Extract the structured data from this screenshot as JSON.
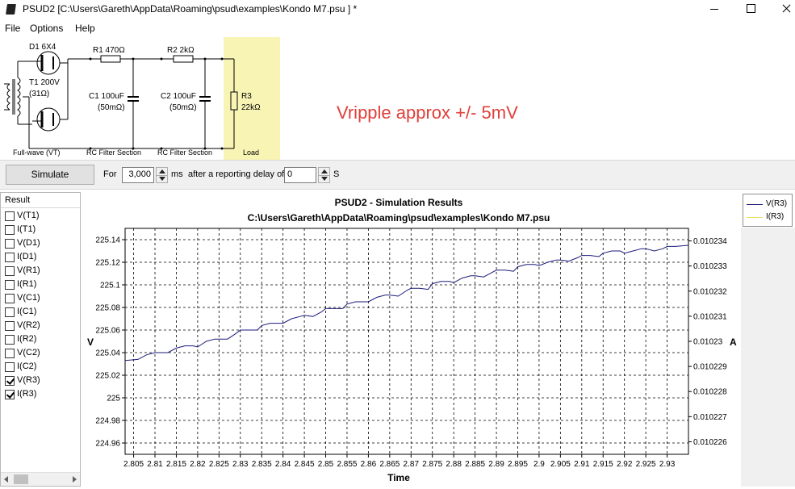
{
  "window": {
    "app": "PSUD2",
    "title": "PSUD2  [C:\\Users\\Gareth\\AppData\\Roaming\\psud\\examples\\Kondo M7.psu ] *"
  },
  "menu": [
    "File",
    "Options",
    "Help"
  ],
  "circuit": {
    "d1": "D1 6X4",
    "t1_line1": "T1 200V",
    "t1_line2": "(31Ω)",
    "r1": "R1 470Ω",
    "r2": "R2 2kΩ",
    "c1_line1": "C1 100uF",
    "c1_line2": "(50mΩ)",
    "c2_line1": "C2 100uF",
    "c2_line2": "(50mΩ)",
    "r3_line1": "R3",
    "r3_line2": "22kΩ",
    "section_fullwave": "Full-wave (VT)",
    "section_rc1": "RC Filter Section",
    "section_rc2": "RC Filter Section",
    "section_load": "Load",
    "annotation": "Vripple approx +/- 5mV",
    "load_color": "#f8f4b4",
    "annotation_color": "#e0403a"
  },
  "controls": {
    "simulate_label": "Simulate",
    "for_label": "For",
    "duration_value": "3,000",
    "ms_label": "ms",
    "delay_label": "after a reporting delay of",
    "delay_value": "0",
    "s_label": "S"
  },
  "results": {
    "header": "Result",
    "items": [
      {
        "label": "V(T1)",
        "checked": false
      },
      {
        "label": "I(T1)",
        "checked": false
      },
      {
        "label": "V(D1)",
        "checked": false
      },
      {
        "label": "I(D1)",
        "checked": false
      },
      {
        "label": "V(R1)",
        "checked": false
      },
      {
        "label": "I(R1)",
        "checked": false
      },
      {
        "label": "V(C1)",
        "checked": false
      },
      {
        "label": "I(C1)",
        "checked": false
      },
      {
        "label": "V(R2)",
        "checked": false
      },
      {
        "label": "I(R2)",
        "checked": false
      },
      {
        "label": "V(C2)",
        "checked": false
      },
      {
        "label": "I(C2)",
        "checked": false
      },
      {
        "label": "V(R3)",
        "checked": true
      },
      {
        "label": "I(R3)",
        "checked": true
      }
    ]
  },
  "legend": [
    {
      "label": "V(R3)",
      "color": "#1a1a7a"
    },
    {
      "label": "I(R3)",
      "color": "#e8e060"
    }
  ],
  "chart_data": {
    "type": "line",
    "title": "PSUD2 - Simulation Results",
    "subtitle": "C:\\Users\\Gareth\\AppData\\Roaming\\psud\\examples\\Kondo M7.psu",
    "xlabel": "Time",
    "ylabel": "V",
    "y2label": "A",
    "xlim": [
      2.803,
      2.935
    ],
    "ylim": [
      224.95,
      225.15
    ],
    "y2lim": [
      0.0102255,
      0.0102345
    ],
    "x_ticks": [
      "2.805",
      "2.81",
      "2.815",
      "2.82",
      "2.825",
      "2.83",
      "2.835",
      "2.84",
      "2.845",
      "2.85",
      "2.855",
      "2.86",
      "2.865",
      "2.87",
      "2.875",
      "2.88",
      "2.885",
      "2.89",
      "2.895",
      "2.9",
      "2.905",
      "2.91",
      "2.915",
      "2.92",
      "2.925",
      "2.93"
    ],
    "y_ticks": [
      "224.96",
      "224.98",
      "225",
      "225.02",
      "225.04",
      "225.06",
      "225.08",
      "225.1",
      "225.12",
      "225.14"
    ],
    "y2_ticks": [
      "0.010226",
      "0.010227",
      "0.010228",
      "0.010229",
      "0.01023",
      "0.010231",
      "0.010232",
      "0.010233",
      "0.010234"
    ],
    "grid": true,
    "series": [
      {
        "name": "V(R3)",
        "color": "#1a1a7a",
        "x": [
          2.803,
          2.806,
          2.808,
          2.81,
          2.812,
          2.813,
          2.815,
          2.817,
          2.819,
          2.82,
          2.822,
          2.824,
          2.825,
          2.827,
          2.829,
          2.83,
          2.832,
          2.834,
          2.835,
          2.837,
          2.839,
          2.84,
          2.842,
          2.844,
          2.845,
          2.847,
          2.849,
          2.85,
          2.852,
          2.854,
          2.855,
          2.857,
          2.859,
          2.86,
          2.862,
          2.864,
          2.865,
          2.867,
          2.869,
          2.87,
          2.872,
          2.874,
          2.875,
          2.877,
          2.879,
          2.88,
          2.882,
          2.884,
          2.885,
          2.887,
          2.889,
          2.89,
          2.892,
          2.894,
          2.895,
          2.897,
          2.899,
          2.9,
          2.902,
          2.904,
          2.905,
          2.907,
          2.909,
          2.91,
          2.912,
          2.914,
          2.915,
          2.917,
          2.919,
          2.92,
          2.922,
          2.924,
          2.925,
          2.927,
          2.929,
          2.93,
          2.932,
          2.935
        ],
        "values": [
          225.033,
          225.034,
          225.038,
          225.04,
          225.04,
          225.04,
          225.044,
          225.046,
          225.046,
          225.045,
          225.05,
          225.052,
          225.052,
          225.052,
          225.057,
          225.06,
          225.06,
          225.06,
          225.064,
          225.066,
          225.066,
          225.066,
          225.07,
          225.072,
          225.073,
          225.072,
          225.076,
          225.079,
          225.079,
          225.079,
          225.083,
          225.085,
          225.085,
          225.085,
          225.089,
          225.091,
          225.091,
          225.09,
          225.095,
          225.097,
          225.097,
          225.096,
          225.101,
          225.103,
          225.103,
          225.102,
          225.106,
          225.108,
          225.108,
          225.107,
          225.111,
          225.113,
          225.113,
          225.112,
          225.116,
          225.118,
          225.118,
          225.117,
          225.12,
          225.122,
          225.122,
          225.121,
          225.124,
          225.126,
          225.126,
          225.125,
          225.128,
          225.13,
          225.13,
          225.128,
          225.13,
          225.132,
          225.132,
          225.13,
          225.132,
          225.134,
          225.134,
          225.135
        ]
      }
    ]
  }
}
